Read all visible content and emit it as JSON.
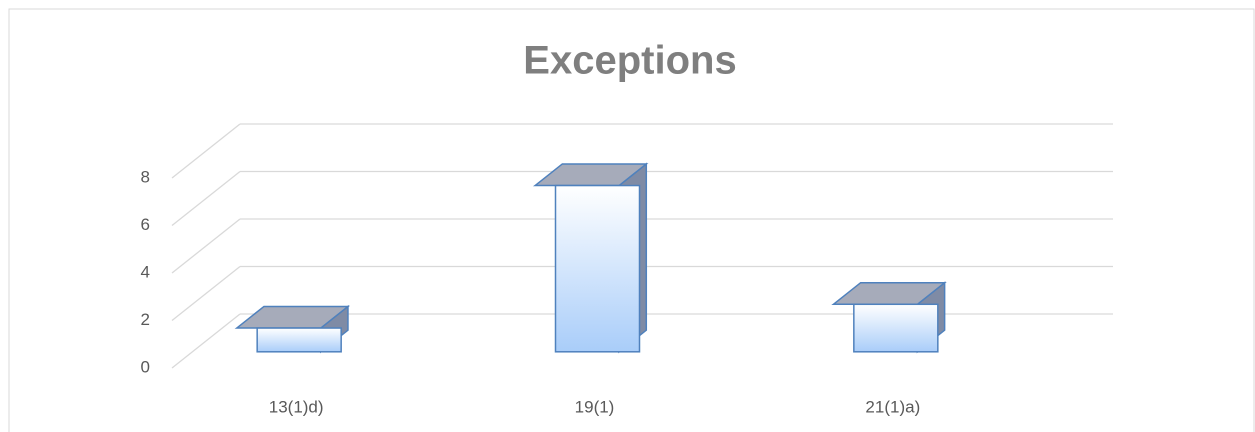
{
  "chart_data": {
    "type": "bar3d",
    "title": "Exceptions",
    "categories": [
      "13(1)d)",
      "19(1)",
      "21(1)a)"
    ],
    "values": [
      1,
      7,
      2
    ],
    "color": "#a9cdf9",
    "ylim": [
      0,
      8
    ],
    "yticks": [
      0,
      2,
      4,
      6,
      8
    ],
    "grid": true
  }
}
